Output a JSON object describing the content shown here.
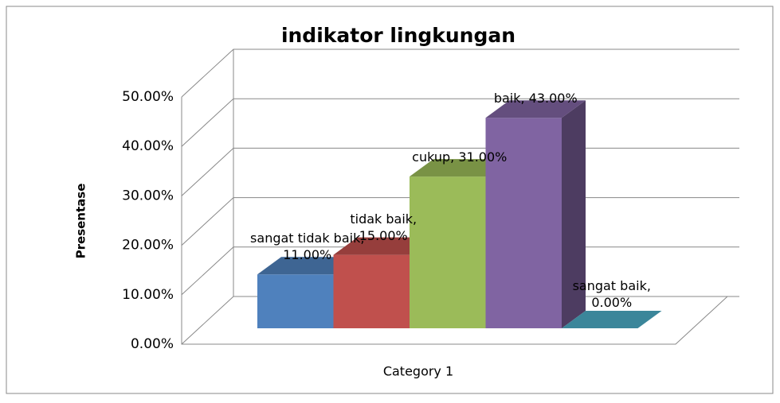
{
  "chart_data": {
    "type": "bar3d",
    "title": "indikator lingkungan",
    "ylabel": "Presentase",
    "categories": [
      "Category 1"
    ],
    "series": [
      {
        "color": "#4f81bd",
        "values": [
          11
        ],
        "value_labels": [
          "sangat tidak baik, 11.00%"
        ]
      },
      {
        "color": "#c0504d",
        "values": [
          15
        ],
        "value_labels": [
          "tidak baik, 15.00%"
        ]
      },
      {
        "color": "#9bbb59",
        "values": [
          31
        ],
        "value_labels": [
          "cukup, 31.00%"
        ]
      },
      {
        "color": "#8064a2",
        "values": [
          43
        ],
        "value_labels": [
          "baik, 43.00%"
        ]
      },
      {
        "color": "#4bacc6",
        "values": [
          0
        ],
        "value_labels": [
          "sangat baik, 0.00%"
        ]
      }
    ],
    "ylim": [
      0,
      50
    ],
    "yticks": [
      {
        "value": 0,
        "label": "0.00%"
      },
      {
        "value": 10,
        "label": "10.00%"
      },
      {
        "value": 20,
        "label": "20.00%"
      },
      {
        "value": 30,
        "label": "30.00%"
      },
      {
        "value": 40,
        "label": "40.00%"
      },
      {
        "value": 50,
        "label": "50.00%"
      }
    ],
    "grid": true
  }
}
